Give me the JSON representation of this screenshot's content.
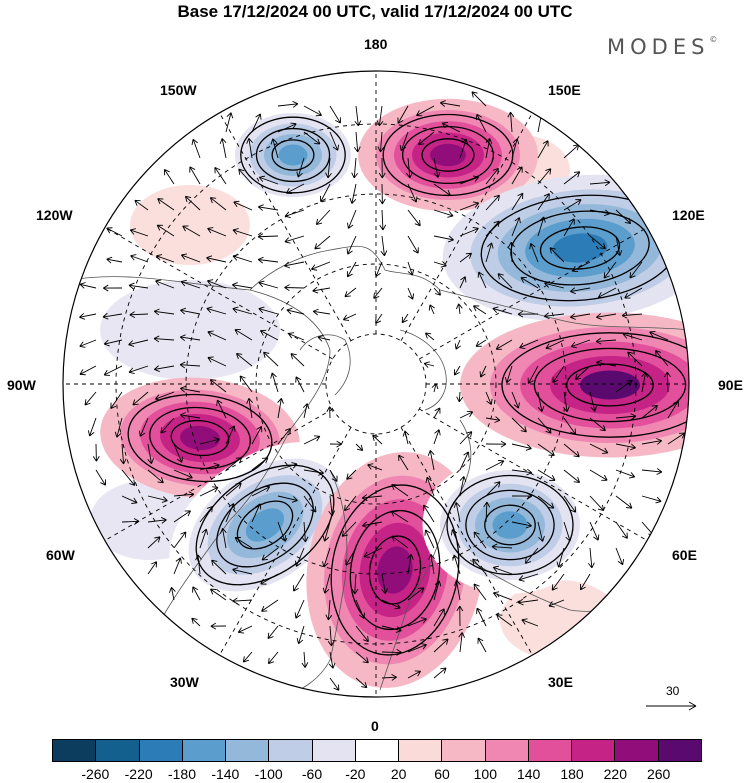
{
  "title": "Base 17/12/2024 00 UTC, valid 17/12/2024 00 UTC",
  "brand": "MODES",
  "brand_mark": "©",
  "longitude_labels": {
    "n180": "180",
    "w150": "150W",
    "e150": "150E",
    "w120": "120W",
    "e120": "120E",
    "w90": "90W",
    "e90": "90E",
    "w60": "60W",
    "e60": "60E",
    "w30": "30W",
    "e30": "30E",
    "zero": "0"
  },
  "reference_vector": {
    "label": "30",
    "icon": "arrow-right-icon"
  },
  "colorbar": {
    "colors": [
      "#0d3d5e",
      "#135f8e",
      "#2c7db7",
      "#5b9dcc",
      "#93b8da",
      "#bfcde6",
      "#e4e3f1",
      "#ffffff",
      "#fadbd9",
      "#f5b8c4",
      "#ef87b2",
      "#e2509b",
      "#c52386",
      "#910e7a",
      "#5a0a6e"
    ],
    "labels": [
      "-260",
      "-220",
      "-180",
      "-140",
      "-100",
      "-60",
      "-20",
      "20",
      "60",
      "100",
      "140",
      "180",
      "220",
      "260"
    ]
  },
  "anomaly_centers": [
    {
      "name": "low-aleutian",
      "value": -200
    },
    {
      "name": "high-arctic-pacific",
      "value": 200
    },
    {
      "name": "low-siberia-east",
      "value": -220
    },
    {
      "name": "high-siberia-west",
      "value": 240
    },
    {
      "name": "high-north-america",
      "value": 220
    },
    {
      "name": "low-north-atlantic",
      "value": -200
    },
    {
      "name": "high-greenland-europe",
      "value": 200
    },
    {
      "name": "low-scandinavia",
      "value": -200
    }
  ]
}
